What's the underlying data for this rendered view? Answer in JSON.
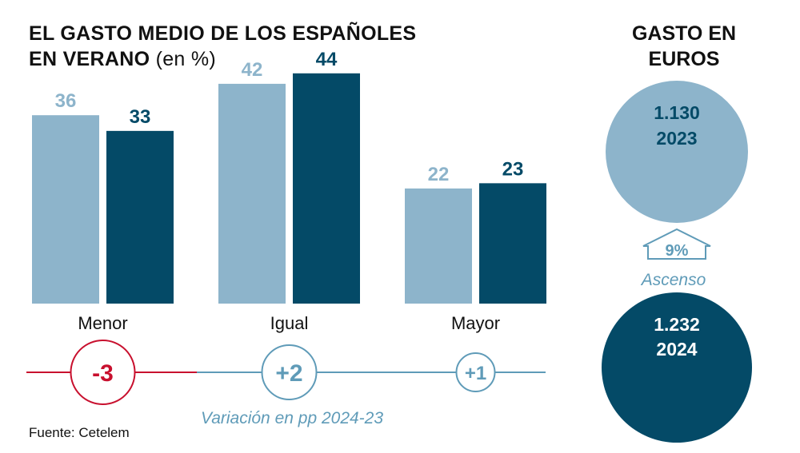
{
  "title": {
    "line1": "EL GASTO MEDIO DE LOS ESPAÑOLES",
    "line2": "EN VERANO",
    "unit": "(en %)"
  },
  "side_title": {
    "line1": "GASTO EN",
    "line2": "EUROS"
  },
  "source": "Fuente: Cetelem",
  "colors": {
    "year_2023": "#8db4cb",
    "year_2024": "#044a67",
    "negative": "#c8102e",
    "positive": "#5f9bb8",
    "text_dark": "#111111"
  },
  "chart_data": [
    {
      "type": "bar",
      "title": "EL GASTO MEDIO DE LOS ESPAÑOLES EN VERANO (en %)",
      "categories": [
        "Menor",
        "Igual",
        "Mayor"
      ],
      "series": [
        {
          "name": "2023",
          "values": [
            36,
            42,
            22
          ]
        },
        {
          "name": "2024",
          "values": [
            33,
            44,
            23
          ]
        }
      ],
      "ylim": [
        0,
        50
      ],
      "grid": false,
      "variation": {
        "label": "Variación en pp 2024-23",
        "values": [
          "-3",
          "+2",
          "+1"
        ]
      }
    },
    {
      "type": "bubble-comparison",
      "title": "GASTO EN EUROS",
      "items": [
        {
          "value": "1.130",
          "year": "2023"
        },
        {
          "value": "1.232",
          "year": "2024"
        }
      ],
      "change": {
        "value": "9%",
        "label": "Ascenso"
      }
    }
  ]
}
